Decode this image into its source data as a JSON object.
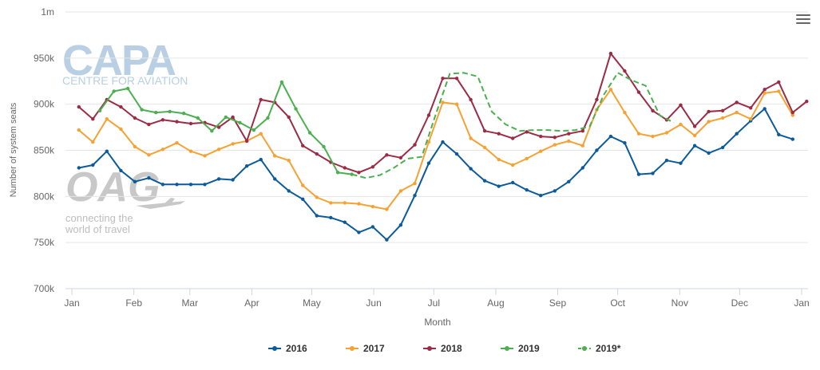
{
  "colors": {
    "2016": "#0b5a9c",
    "2017": "#f5a232",
    "2018": "#9c2b45",
    "2019": "#4caf50",
    "2019*": "#4caf50",
    "grid": "#e6e6e6",
    "axis_text": "#666666",
    "watermark": "#b9cfe3"
  },
  "watermark": {
    "capa_title": "CAPA",
    "capa_subtitle": "CENTRE FOR AVIATION",
    "oag_title": "OAG",
    "oag_tagline_1": "connecting the",
    "oag_tagline_2": "world of travel"
  },
  "menu_icon": "hamburger-menu-icon",
  "chart_data": {
    "type": "line",
    "title": "",
    "xlabel": "Month",
    "ylabel": "Number of system seats",
    "ylim": [
      700000,
      1000000
    ],
    "y_ticks": [
      700000,
      750000,
      800000,
      850000,
      900000,
      950000,
      1000000
    ],
    "y_tick_labels": [
      "700k",
      "750k",
      "800k",
      "850k",
      "900k",
      "950k",
      "1m"
    ],
    "x_ticks": [
      0,
      4.43,
      8.43,
      12.86,
      17.14,
      21.57,
      25.86,
      30.29,
      34.71,
      39,
      43.43,
      47.71,
      52.14
    ],
    "x_tick_labels": [
      "Jan",
      "Feb",
      "Mar",
      "Apr",
      "May",
      "Jun",
      "Jul",
      "Aug",
      "Sep",
      "Oct",
      "Nov",
      "Dec",
      "Jan"
    ],
    "grid": true,
    "legend_position": "bottom-center",
    "series": [
      {
        "name": "2016",
        "dashed": false,
        "x": [
          0.5,
          1.5,
          2.5,
          3.5,
          4.5,
          5.5,
          6.5,
          7.5,
          8.5,
          9.5,
          10.5,
          11.5,
          12.5,
          13.5,
          14.5,
          15.5,
          16.5,
          17.5,
          18.5,
          19.5,
          20.5,
          21.5,
          22.5,
          23.5,
          24.5,
          25.5,
          26.5,
          27.5,
          28.5,
          29.5,
          30.5,
          31.5,
          32.5,
          33.5,
          34.5,
          35.5,
          36.5,
          37.5,
          38.5,
          39.5,
          40.5,
          41.5,
          42.5,
          43.5,
          44.5,
          45.5,
          46.5,
          47.5,
          48.5,
          49.5,
          50.5,
          51.5
        ],
        "values": [
          831000,
          834000,
          849000,
          828000,
          816000,
          820000,
          813000,
          813000,
          813000,
          813000,
          819000,
          818000,
          833000,
          840000,
          819000,
          806000,
          797000,
          779000,
          777000,
          772000,
          761000,
          767000,
          753000,
          769000,
          801000,
          836000,
          859000,
          846000,
          830000,
          817000,
          811000,
          815000,
          807000,
          801000,
          806000,
          816000,
          831000,
          850000,
          865000,
          858000,
          824000,
          825000,
          839000,
          836000,
          855000,
          847000,
          853000,
          868000,
          882000,
          895000,
          867000,
          862000
        ]
      },
      {
        "name": "2017",
        "dashed": false,
        "x": [
          0.5,
          1.5,
          2.5,
          3.5,
          4.5,
          5.5,
          6.5,
          7.5,
          8.5,
          9.5,
          10.5,
          11.5,
          12.5,
          13.5,
          14.5,
          15.5,
          16.5,
          17.5,
          18.5,
          19.5,
          20.5,
          21.5,
          22.5,
          23.5,
          24.5,
          25.5,
          26.5,
          27.5,
          28.5,
          29.5,
          30.5,
          31.5,
          32.5,
          33.5,
          34.5,
          35.5,
          36.5,
          37.5,
          38.5,
          39.5,
          40.5,
          41.5,
          42.5,
          43.5,
          44.5,
          45.5,
          46.5,
          47.5,
          48.5,
          49.5,
          50.5,
          51.5
        ],
        "values": [
          872000,
          859000,
          884000,
          873000,
          854000,
          845000,
          851000,
          858000,
          849000,
          844000,
          851000,
          857000,
          860000,
          868000,
          844000,
          839000,
          812000,
          799000,
          793000,
          793000,
          792000,
          789000,
          786000,
          806000,
          814000,
          859000,
          902000,
          900000,
          863000,
          853000,
          840000,
          834000,
          841000,
          849000,
          856000,
          860000,
          855000,
          894000,
          916000,
          891000,
          868000,
          865000,
          869000,
          878000,
          866000,
          881000,
          885000,
          891000,
          884000,
          912000,
          914000,
          888000
        ]
      },
      {
        "name": "2018",
        "dashed": false,
        "x": [
          0.5,
          1.5,
          2.5,
          3.5,
          4.5,
          5.5,
          6.5,
          7.5,
          8.5,
          9.5,
          10.5,
          11.5,
          12.5,
          13.5,
          14.5,
          15.5,
          16.5,
          17.5,
          18.5,
          19.5,
          20.5,
          21.5,
          22.5,
          23.5,
          24.5,
          25.5,
          26.5,
          27.5,
          28.5,
          29.5,
          30.5,
          31.5,
          32.5,
          33.5,
          34.5,
          35.5,
          36.5,
          37.5,
          38.5,
          39.5,
          40.5,
          41.5,
          42.5,
          43.5,
          44.5,
          45.5,
          46.5,
          47.5,
          48.5,
          49.5,
          50.5,
          51.5,
          52.5
        ],
        "values": [
          897000,
          884000,
          905000,
          897000,
          885000,
          878000,
          883000,
          881000,
          879000,
          880000,
          875000,
          886000,
          860000,
          905000,
          902000,
          886000,
          855000,
          846000,
          837000,
          831000,
          826000,
          832000,
          845000,
          842000,
          856000,
          888000,
          928000,
          928000,
          905000,
          871000,
          868000,
          863000,
          870000,
          865000,
          864000,
          868000,
          871000,
          905000,
          955000,
          936000,
          913000,
          893000,
          883000,
          899000,
          876000,
          892000,
          893000,
          902000,
          896000,
          916000,
          924000,
          891000,
          903000
        ]
      },
      {
        "name": "2019",
        "dashed": false,
        "x": [
          2.0,
          3.0,
          4.0,
          5.0,
          6.0,
          7.0,
          8.0,
          9.0,
          10.0,
          11.0,
          12.0,
          13.0,
          14.0,
          15.0,
          16.0,
          17.0,
          18.0,
          19.0,
          20.0
        ],
        "values": [
          893000,
          914000,
          917000,
          894000,
          891000,
          892000,
          890000,
          885000,
          871000,
          886000,
          880000,
          872000,
          885000,
          924000,
          895000,
          869000,
          854000,
          826000,
          824000
        ]
      },
      {
        "name": "2019*",
        "dashed": true,
        "x": [
          20.0,
          21.0,
          22.0,
          23.0,
          24.0,
          25.0,
          26.0,
          27.0,
          28.0,
          29.0,
          30.0,
          31.0,
          32.0,
          33.0,
          34.0,
          35.0,
          36.0,
          37.0,
          38.0,
          39.0,
          40.0,
          41.0,
          42.0,
          43.0
        ],
        "values": [
          824000,
          820000,
          823000,
          831000,
          841000,
          843000,
          889000,
          933000,
          934000,
          930000,
          892000,
          878000,
          871000,
          872000,
          872000,
          871000,
          872000,
          876000,
          910000,
          934000,
          926000,
          920000,
          888000,
          880000
        ]
      }
    ]
  }
}
